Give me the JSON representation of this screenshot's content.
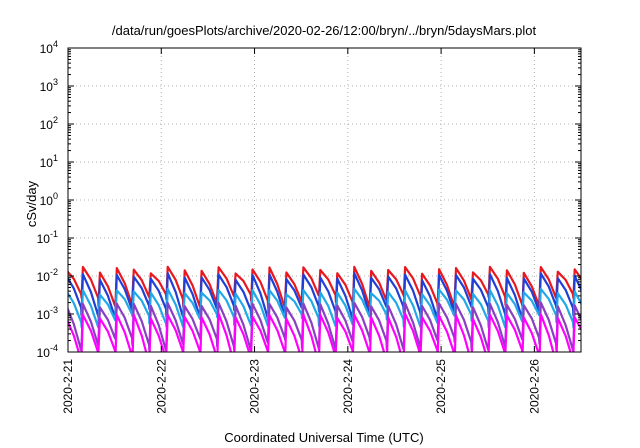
{
  "chart_data": {
    "type": "line",
    "title": "/data/run/goesPlots/archive/2020-02-26/12:00/bryn/../bryn/5daysMars.plot",
    "xlabel": "Coordinated Universal Time (UTC)",
    "ylabel": "cSv/day",
    "yscale": "log",
    "ylim": [
      0.0001,
      10000
    ],
    "xlim": [
      "2020-02-21T00:00",
      "2020-02-26T12:00"
    ],
    "grid": true,
    "x_ticks": [
      "2020-2-21",
      "2020-2-22",
      "2020-2-23",
      "2020-2-24",
      "2020-2-25",
      "2020-2-26"
    ],
    "y_ticks": [
      {
        "base": "10",
        "exp": "-4"
      },
      {
        "base": "10",
        "exp": "-3"
      },
      {
        "base": "10",
        "exp": "-2"
      },
      {
        "base": "10",
        "exp": "-1"
      },
      {
        "base": "10",
        "exp": "0"
      },
      {
        "base": "10",
        "exp": "1"
      },
      {
        "base": "10",
        "exp": "2"
      },
      {
        "base": "10",
        "exp": "3"
      },
      {
        "base": "10",
        "exp": "4"
      }
    ],
    "pattern": {
      "description": "sawtooth dose-rate curves, about 5.5 cycles per day",
      "cycles_per_day": 5.5
    },
    "series": [
      {
        "color": "#e8181e",
        "peak": 0.015,
        "trough": 0.003
      },
      {
        "color": "#1f3fd6",
        "peak": 0.01,
        "trough": 0.0015
      },
      {
        "color": "#22a8e8",
        "peak": 0.004,
        "trough": 0.0009
      },
      {
        "color": "#8a3fc2",
        "peak": 0.0018,
        "trough": 0.00022
      },
      {
        "color": "#ff00ff",
        "peak": 0.0009,
        "trough": 0.0001
      }
    ]
  }
}
